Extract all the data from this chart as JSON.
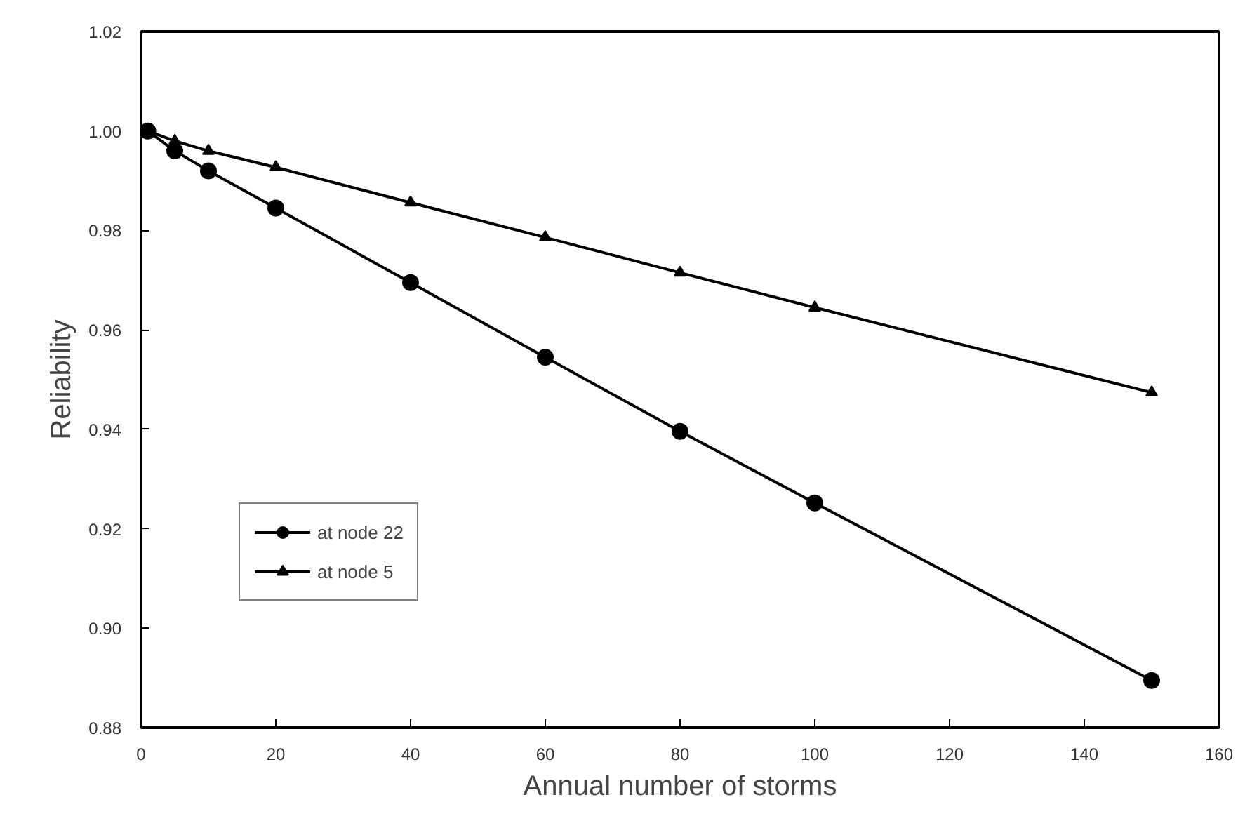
{
  "chart_data": {
    "type": "line",
    "xlabel": "Annual number of storms",
    "ylabel": "Reliability",
    "x": [
      1,
      5,
      10,
      20,
      40,
      60,
      80,
      100,
      150
    ],
    "series": [
      {
        "name": "at node 22",
        "color": "#000000",
        "marker": "circle",
        "values": [
          1.0,
          0.996,
          0.992,
          0.9845,
          0.9695,
          0.9545,
          0.9396,
          0.9252,
          0.8895
        ]
      },
      {
        "name": "at node 5",
        "color": "#000000",
        "marker": "triangle",
        "values": [
          1.0,
          0.998,
          0.996,
          0.9927,
          0.9856,
          0.9786,
          0.9715,
          0.9645,
          0.9474
        ]
      }
    ],
    "xlim": [
      0,
      160
    ],
    "xticks": [
      0,
      20,
      40,
      60,
      80,
      100,
      120,
      140,
      160
    ],
    "ylim": [
      0.88,
      1.02
    ],
    "yticks": [
      {
        "value": 0.88,
        "label": "0.88"
      },
      {
        "value": 0.9,
        "label": "0.90"
      },
      {
        "value": 0.92,
        "label": "0.92"
      },
      {
        "value": 0.94,
        "label": "0.94"
      },
      {
        "value": 0.96,
        "label": "0.96"
      },
      {
        "value": 0.98,
        "label": "0.98"
      },
      {
        "value": 1.0,
        "label": "1.00"
      },
      {
        "value": 1.02,
        "label": "1.02"
      }
    ],
    "grid": false,
    "legend": "bottom left",
    "line_style": "solid"
  }
}
